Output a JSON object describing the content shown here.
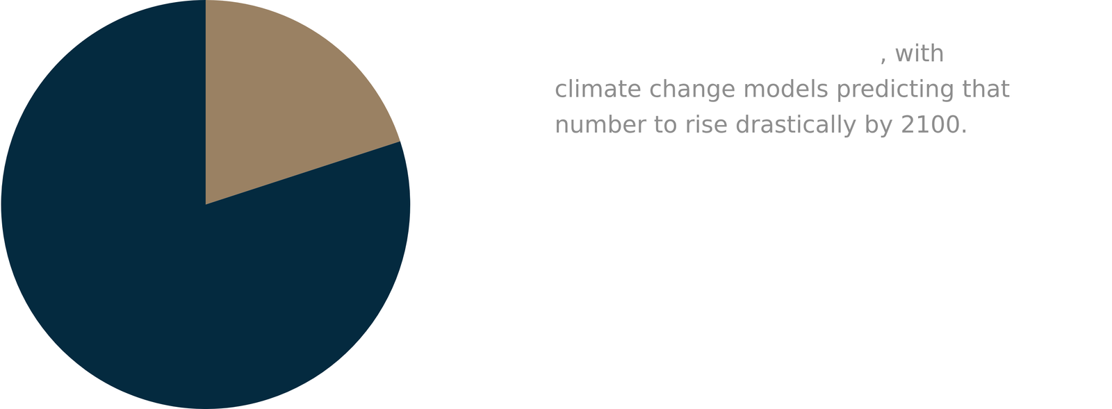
{
  "chart_data": {
    "type": "pie",
    "values": [
      20,
      80
    ],
    "colors": [
      "#9a8163",
      "#042a3f"
    ],
    "legend": false,
    "annotations": [
      ", with",
      "climate change models predicting that",
      "number to rise drastically by 2100."
    ]
  }
}
